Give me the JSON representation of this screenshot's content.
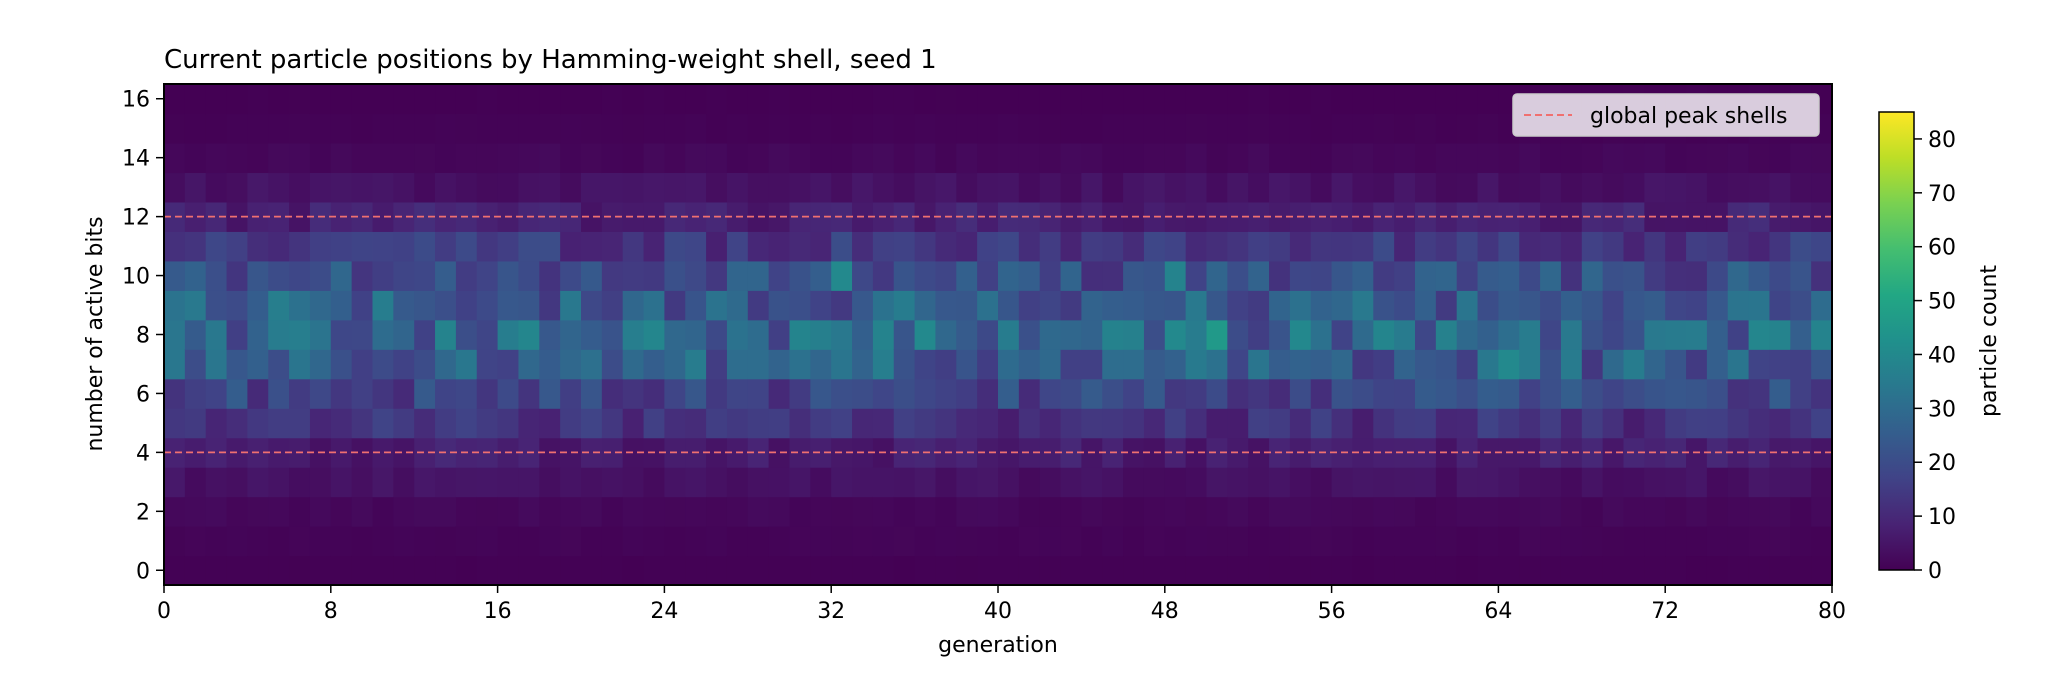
{
  "chart_data": {
    "type": "heatmap",
    "title": "Current particle positions by Hamming-weight shell, seed 1",
    "xlabel": "generation",
    "ylabel": "number of active bits",
    "colorbar_label": "particle count",
    "colormap": "viridis",
    "color_range": [
      0,
      85
    ],
    "x_range": [
      0,
      80
    ],
    "y_range": [
      -0.5,
      16.5
    ],
    "x_ticks": [
      0,
      8,
      16,
      24,
      32,
      40,
      48,
      56,
      64,
      72,
      80
    ],
    "y_ticks": [
      0,
      2,
      4,
      6,
      8,
      10,
      12,
      14,
      16
    ],
    "colorbar_ticks": [
      0,
      10,
      20,
      30,
      40,
      50,
      60,
      70,
      80
    ],
    "generations": 80,
    "shells": [
      0,
      1,
      2,
      3,
      4,
      5,
      6,
      7,
      8,
      9,
      10,
      11,
      12,
      13,
      14,
      15,
      16
    ],
    "shell_mean_counts": [
      0.2,
      0.8,
      1.6,
      4,
      7,
      12,
      18,
      25,
      28,
      25,
      20,
      14,
      8,
      4,
      1.5,
      0.5,
      0.1
    ],
    "peak_cells": [
      {
        "generation": 2,
        "shell": 8,
        "count": 34
      },
      {
        "generation": 6,
        "shell": 8,
        "count": 36
      },
      {
        "generation": 32,
        "shell": 10,
        "count": 40
      },
      {
        "generation": 48,
        "shell": 10,
        "count": 38
      },
      {
        "generation": 50,
        "shell": 8,
        "count": 46
      },
      {
        "generation": 64,
        "shell": 7,
        "count": 40
      },
      {
        "generation": 77,
        "shell": 8,
        "count": 38
      }
    ],
    "reference_lines": [
      4,
      12
    ],
    "legend": {
      "label": "global peak shells",
      "color": "#f07070",
      "position": "upper-right"
    },
    "grid": false
  }
}
